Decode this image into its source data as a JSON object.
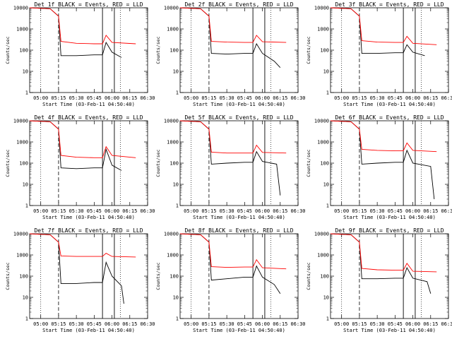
{
  "chart_data": [
    {
      "type": "line",
      "title": "Det 1f BLACK = Events, RED = LLD",
      "ylabel": "Counts/sec",
      "xlabel": "Start Time (03-Feb-11 04:50:40)",
      "y_scale": "log",
      "ylim": [
        1,
        10000
      ],
      "xlim": [
        "04:50:40",
        "06:30"
      ],
      "x_ticks": [
        "05:00",
        "05:15",
        "05:30",
        "05:45",
        "06:00",
        "06:15",
        "06:30"
      ],
      "y_ticks": [
        "1",
        "10",
        "100",
        "1000",
        "10000"
      ],
      "markers": [
        "05:00",
        "05:15",
        "05:52",
        "06:02",
        "06:07"
      ],
      "series": [
        {
          "color": "#000000",
          "x": [
            "04:50:40",
            "05:08",
            "05:15",
            "05:17",
            "05:30",
            "05:45",
            "05:52",
            "05:55",
            "06:00",
            "06:08"
          ],
          "values": [
            10000,
            9000,
            4000,
            55,
            55,
            60,
            60,
            230,
            80,
            45
          ]
        },
        {
          "color": "#ff0000",
          "x": [
            "04:50:40",
            "05:08",
            "05:15",
            "05:17",
            "05:30",
            "05:45",
            "05:52",
            "05:55",
            "06:00",
            "06:20"
          ],
          "values": [
            10000,
            9000,
            4000,
            260,
            210,
            200,
            200,
            500,
            230,
            200
          ]
        }
      ]
    },
    {
      "type": "line",
      "title": "Det 2f BLACK = Events, RED = LLD",
      "ylabel": "Counts/sec",
      "xlabel": "Start Time (03-Feb-11 04:50:40)",
      "y_scale": "log",
      "ylim": [
        1,
        10000
      ],
      "xlim": [
        "04:50:40",
        "06:30"
      ],
      "x_ticks": [
        "05:00",
        "05:15",
        "05:30",
        "05:45",
        "06:00",
        "06:15",
        "06:30"
      ],
      "y_ticks": [
        "1",
        "10",
        "100",
        "1000",
        "10000"
      ],
      "markers": [
        "05:00",
        "05:15",
        "05:52",
        "06:02",
        "06:07"
      ],
      "series": [
        {
          "color": "#000000",
          "x": [
            "04:50:40",
            "05:08",
            "05:15",
            "05:17",
            "05:30",
            "05:45",
            "05:52",
            "05:55",
            "06:00",
            "06:10",
            "06:15"
          ],
          "values": [
            10000,
            9000,
            4000,
            70,
            65,
            70,
            70,
            200,
            70,
            30,
            15
          ]
        },
        {
          "color": "#ff0000",
          "x": [
            "04:50:40",
            "05:08",
            "05:15",
            "05:17",
            "05:30",
            "05:45",
            "05:52",
            "05:55",
            "06:00",
            "06:20"
          ],
          "values": [
            10000,
            9000,
            4000,
            260,
            240,
            230,
            230,
            500,
            250,
            230
          ]
        }
      ]
    },
    {
      "type": "line",
      "title": "Det 3f BLACK = Events, RED = LLD",
      "ylabel": "Counts/sec",
      "xlabel": "Start Time (03-Feb-11 04:50:40)",
      "y_scale": "log",
      "ylim": [
        1,
        10000
      ],
      "xlim": [
        "04:50:40",
        "06:30"
      ],
      "x_ticks": [
        "05:00",
        "05:15",
        "05:30",
        "05:45",
        "06:00",
        "06:15",
        "06:30"
      ],
      "y_ticks": [
        "1",
        "10",
        "100",
        "1000",
        "10000"
      ],
      "markers": [
        "05:00",
        "05:15",
        "05:52",
        "06:02",
        "06:07"
      ],
      "series": [
        {
          "color": "#000000",
          "x": [
            "04:50:40",
            "05:08",
            "05:15",
            "05:17",
            "05:30",
            "05:45",
            "05:52",
            "05:55",
            "06:00",
            "06:10"
          ],
          "values": [
            10000,
            9000,
            4000,
            70,
            70,
            75,
            75,
            180,
            80,
            55
          ]
        },
        {
          "color": "#ff0000",
          "x": [
            "04:50:40",
            "05:08",
            "05:15",
            "05:17",
            "05:30",
            "05:45",
            "05:52",
            "05:55",
            "06:00",
            "06:20"
          ],
          "values": [
            10000,
            9000,
            4000,
            280,
            240,
            230,
            230,
            450,
            210,
            180
          ]
        }
      ]
    },
    {
      "type": "line",
      "title": "Det 4f BLACK = Events, RED = LLD",
      "ylabel": "Counts/sec",
      "xlabel": "Start Time (03-Feb-11 04:50:40)",
      "y_scale": "log",
      "ylim": [
        1,
        10000
      ],
      "xlim": [
        "04:50:40",
        "06:30"
      ],
      "x_ticks": [
        "05:00",
        "05:15",
        "05:30",
        "05:45",
        "06:00",
        "06:15",
        "06:30"
      ],
      "y_ticks": [
        "1",
        "10",
        "100",
        "1000",
        "10000"
      ],
      "markers": [
        "05:00",
        "05:15",
        "05:52",
        "06:02",
        "06:07"
      ],
      "series": [
        {
          "color": "#000000",
          "x": [
            "04:50:40",
            "05:08",
            "05:15",
            "05:17",
            "05:30",
            "05:45",
            "05:52",
            "05:55",
            "06:00",
            "06:08"
          ],
          "values": [
            10000,
            9000,
            4000,
            60,
            55,
            60,
            60,
            450,
            80,
            45
          ]
        },
        {
          "color": "#ff0000",
          "x": [
            "04:50:40",
            "05:08",
            "05:15",
            "05:17",
            "05:30",
            "05:45",
            "05:52",
            "05:55",
            "06:00",
            "06:20"
          ],
          "values": [
            10000,
            9000,
            4000,
            230,
            190,
            180,
            180,
            600,
            230,
            180
          ]
        }
      ]
    },
    {
      "type": "line",
      "title": "Det 5f BLACK = Events, RED = LLD",
      "ylabel": "Counts/sec",
      "xlabel": "Start Time (03-Feb-11 04:50:40)",
      "y_scale": "log",
      "ylim": [
        1,
        10000
      ],
      "xlim": [
        "04:50:40",
        "06:30"
      ],
      "x_ticks": [
        "05:00",
        "05:15",
        "05:30",
        "05:45",
        "06:00",
        "06:15",
        "06:30"
      ],
      "y_ticks": [
        "1",
        "10",
        "100",
        "1000",
        "10000"
      ],
      "markers": [
        "05:00",
        "05:15",
        "05:52",
        "06:02",
        "06:07"
      ],
      "series": [
        {
          "color": "#000000",
          "x": [
            "04:50:40",
            "05:08",
            "05:15",
            "05:17",
            "05:30",
            "05:45",
            "05:52",
            "05:55",
            "06:00",
            "06:12",
            "06:15"
          ],
          "values": [
            10000,
            9000,
            4000,
            90,
            100,
            110,
            110,
            350,
            120,
            90,
            3
          ]
        },
        {
          "color": "#ff0000",
          "x": [
            "04:50:40",
            "05:08",
            "05:15",
            "05:17",
            "05:30",
            "05:45",
            "05:52",
            "05:55",
            "06:00",
            "06:20"
          ],
          "values": [
            10000,
            9000,
            4000,
            330,
            300,
            300,
            300,
            700,
            320,
            300
          ]
        }
      ]
    },
    {
      "type": "line",
      "title": "Det 6f BLACK = Events, RED = LLD",
      "ylabel": "Counts/sec",
      "xlabel": "Start Time (03-Feb-11 04:50:40)",
      "y_scale": "log",
      "ylim": [
        1,
        10000
      ],
      "xlim": [
        "04:50:40",
        "06:30"
      ],
      "x_ticks": [
        "05:00",
        "05:15",
        "05:30",
        "05:45",
        "06:00",
        "06:15",
        "06:30"
      ],
      "y_ticks": [
        "1",
        "10",
        "100",
        "1000",
        "10000"
      ],
      "markers": [
        "05:00",
        "05:15",
        "05:52",
        "06:02",
        "06:07"
      ],
      "series": [
        {
          "color": "#000000",
          "x": [
            "04:50:40",
            "05:08",
            "05:15",
            "05:17",
            "05:30",
            "05:45",
            "05:52",
            "05:55",
            "06:00",
            "06:15",
            "06:18"
          ],
          "values": [
            10000,
            9000,
            4000,
            90,
            100,
            110,
            110,
            400,
            100,
            70,
            2
          ]
        },
        {
          "color": "#ff0000",
          "x": [
            "04:50:40",
            "05:08",
            "05:15",
            "05:17",
            "05:30",
            "05:45",
            "05:52",
            "05:55",
            "06:00",
            "06:20"
          ],
          "values": [
            10000,
            9000,
            4000,
            450,
            400,
            380,
            380,
            900,
            400,
            350
          ]
        }
      ]
    },
    {
      "type": "line",
      "title": "Det 7f BLACK = Events, RED = LLD",
      "ylabel": "Counts/sec",
      "xlabel": "Start Time (03-Feb-11 04:50:40)",
      "y_scale": "log",
      "ylim": [
        1,
        10000
      ],
      "xlim": [
        "04:50:40",
        "06:30"
      ],
      "x_ticks": [
        "05:00",
        "05:15",
        "05:30",
        "05:45",
        "06:00",
        "06:15",
        "06:30"
      ],
      "y_ticks": [
        "1",
        "10",
        "100",
        "1000",
        "10000"
      ],
      "markers": [
        "05:00",
        "05:15",
        "05:52",
        "06:02",
        "06:07"
      ],
      "series": [
        {
          "color": "#000000",
          "x": [
            "04:50:40",
            "05:08",
            "05:15",
            "05:17",
            "05:30",
            "05:45",
            "05:52",
            "05:55",
            "06:00",
            "06:08",
            "06:10"
          ],
          "values": [
            10000,
            9000,
            4000,
            45,
            45,
            50,
            50,
            450,
            100,
            35,
            5
          ]
        },
        {
          "color": "#ff0000",
          "x": [
            "04:50:40",
            "05:08",
            "05:15",
            "05:17",
            "05:30",
            "05:45",
            "05:52",
            "05:55",
            "06:00",
            "06:20"
          ],
          "values": [
            10000,
            9000,
            4000,
            900,
            850,
            850,
            850,
            1200,
            850,
            800
          ]
        }
      ]
    },
    {
      "type": "line",
      "title": "Det 8f BLACK = Events, RED = LLD",
      "ylabel": "Counts/sec",
      "xlabel": "Start Time (03-Feb-11 04:50:40)",
      "y_scale": "log",
      "ylim": [
        1,
        10000
      ],
      "xlim": [
        "04:50:40",
        "06:30"
      ],
      "x_ticks": [
        "05:00",
        "05:15",
        "05:30",
        "05:45",
        "06:00",
        "06:15",
        "06:30"
      ],
      "y_ticks": [
        "1",
        "10",
        "100",
        "1000",
        "10000"
      ],
      "markers": [
        "05:00",
        "05:15",
        "05:52",
        "06:02",
        "06:07"
      ],
      "series": [
        {
          "color": "#000000",
          "x": [
            "04:50:40",
            "05:08",
            "05:15",
            "05:17",
            "05:30",
            "05:45",
            "05:52",
            "05:55",
            "06:00",
            "06:10",
            "06:15"
          ],
          "values": [
            10000,
            9000,
            4000,
            65,
            75,
            90,
            90,
            300,
            90,
            40,
            15
          ]
        },
        {
          "color": "#ff0000",
          "x": [
            "04:50:40",
            "05:08",
            "05:15",
            "05:17",
            "05:30",
            "05:45",
            "05:52",
            "05:55",
            "06:00",
            "06:20"
          ],
          "values": [
            10000,
            9000,
            4000,
            280,
            260,
            270,
            270,
            600,
            250,
            220
          ]
        }
      ]
    },
    {
      "type": "line",
      "title": "Det 9f BLACK = Events, RED = LLD",
      "ylabel": "Counts/sec",
      "xlabel": "Start Time (03-Feb-11 04:50:40)",
      "y_scale": "log",
      "ylim": [
        1,
        10000
      ],
      "xlim": [
        "04:50:40",
        "06:30"
      ],
      "x_ticks": [
        "05:00",
        "05:15",
        "05:30",
        "05:45",
        "06:00",
        "06:15",
        "06:30"
      ],
      "y_ticks": [
        "1",
        "10",
        "100",
        "1000",
        "10000"
      ],
      "markers": [
        "05:00",
        "05:15",
        "05:52",
        "06:02",
        "06:07"
      ],
      "series": [
        {
          "color": "#000000",
          "x": [
            "04:50:40",
            "05:08",
            "05:15",
            "05:17",
            "05:30",
            "05:45",
            "05:52",
            "05:55",
            "06:00",
            "06:12",
            "06:15"
          ],
          "values": [
            10000,
            9000,
            4000,
            75,
            75,
            80,
            80,
            250,
            80,
            55,
            15
          ]
        },
        {
          "color": "#ff0000",
          "x": [
            "04:50:40",
            "05:08",
            "05:15",
            "05:17",
            "05:30",
            "05:45",
            "05:52",
            "05:55",
            "06:00",
            "06:20"
          ],
          "values": [
            10000,
            9000,
            4000,
            230,
            200,
            190,
            190,
            400,
            170,
            160
          ]
        }
      ]
    }
  ]
}
